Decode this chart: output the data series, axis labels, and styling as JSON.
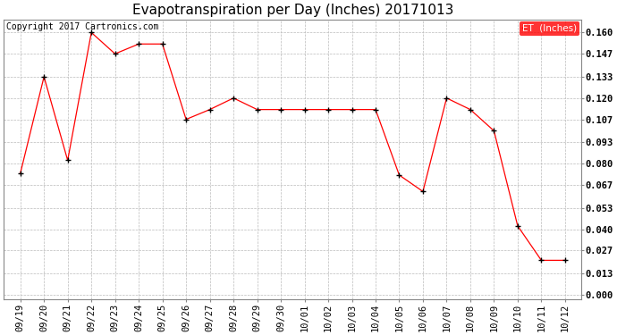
{
  "title": "Evapotranspiration per Day (Inches) 20171013",
  "copyright_text": "Copyright 2017 Cartronics.com",
  "legend_label": "ET  (Inches)",
  "legend_bg": "#ff0000",
  "legend_fg": "#ffffff",
  "x_labels": [
    "09/19",
    "09/20",
    "09/21",
    "09/22",
    "09/23",
    "09/24",
    "09/25",
    "09/26",
    "09/27",
    "09/28",
    "09/29",
    "09/30",
    "10/01",
    "10/02",
    "10/03",
    "10/04",
    "10/05",
    "10/06",
    "10/07",
    "10/08",
    "10/09",
    "10/10",
    "10/11",
    "10/12"
  ],
  "y_values": [
    0.074,
    0.133,
    0.082,
    0.16,
    0.147,
    0.153,
    0.153,
    0.107,
    0.113,
    0.12,
    0.113,
    0.113,
    0.113,
    0.113,
    0.113,
    0.113,
    0.073,
    0.063,
    0.12,
    0.113,
    0.1,
    0.042,
    0.021,
    0.021
  ],
  "y_ticks": [
    0.0,
    0.013,
    0.027,
    0.04,
    0.053,
    0.067,
    0.08,
    0.093,
    0.107,
    0.12,
    0.133,
    0.147,
    0.16
  ],
  "ylim_min": -0.003,
  "ylim_max": 0.168,
  "line_color": "#ff0000",
  "marker": "+",
  "marker_color": "#000000",
  "grid_color": "#bbbbbb",
  "bg_color": "#ffffff",
  "title_fontsize": 11,
  "tick_fontsize": 7.5,
  "copyright_fontsize": 7
}
